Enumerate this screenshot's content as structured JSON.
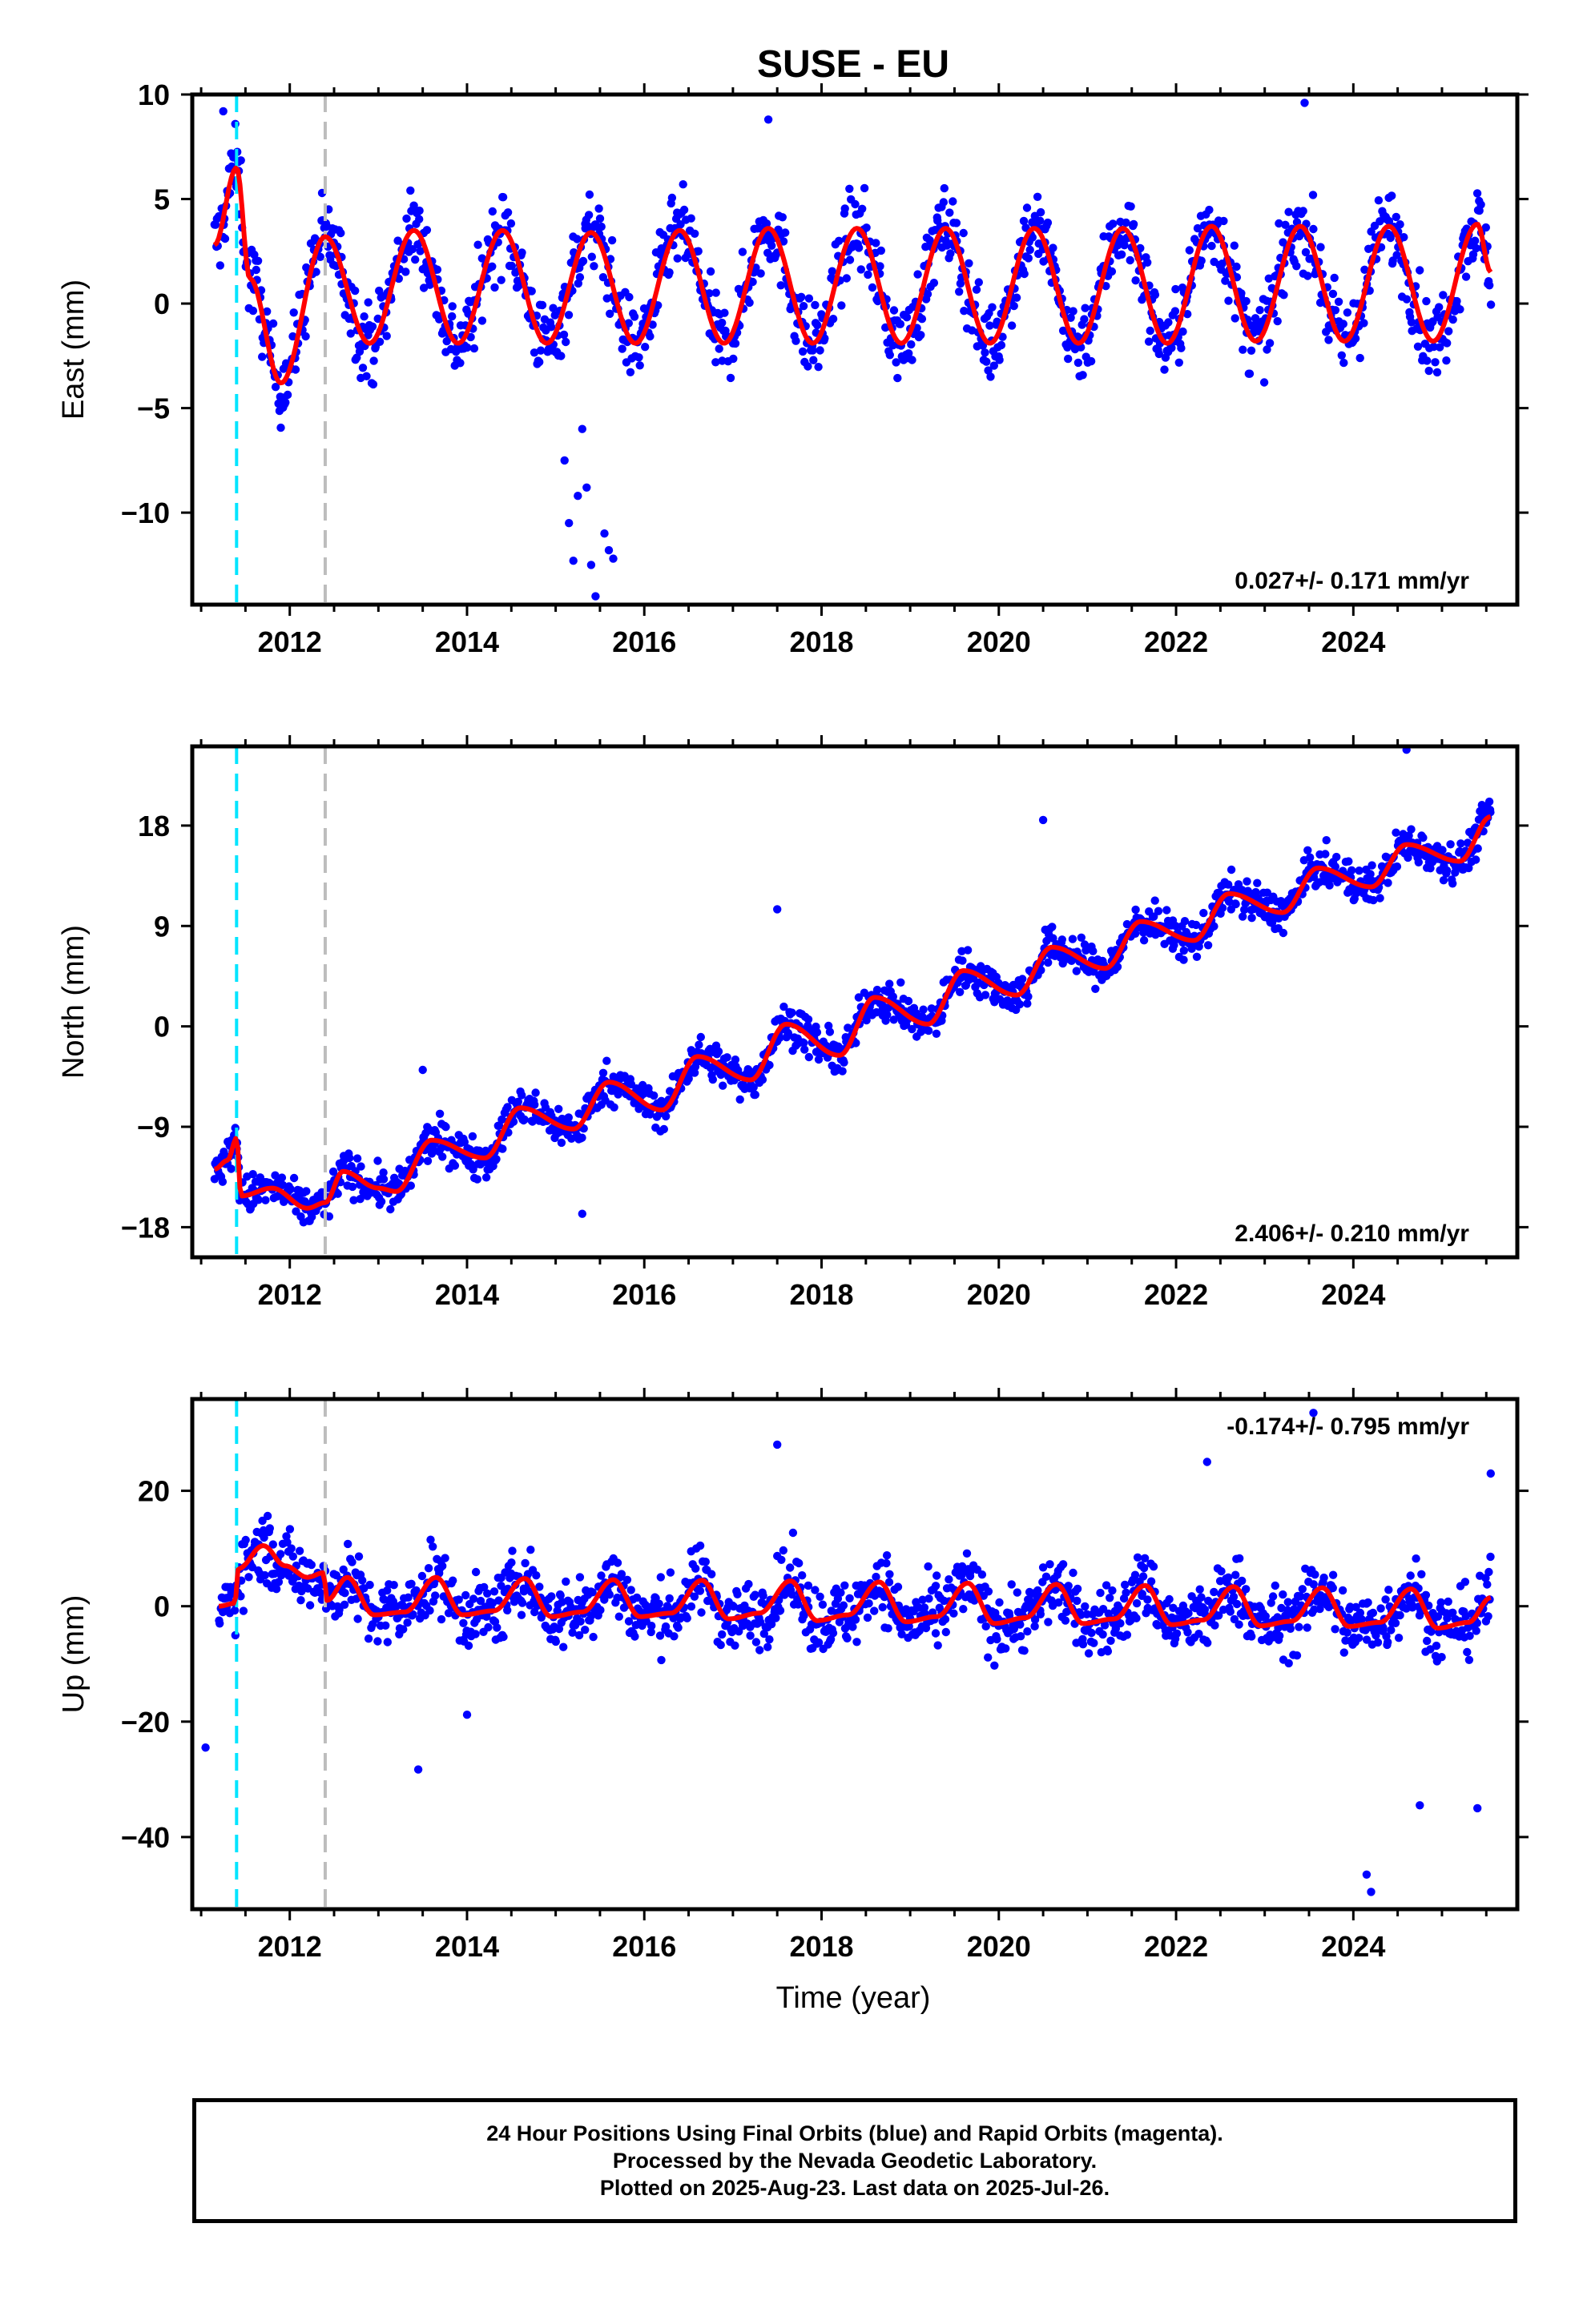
{
  "title": "SUSE - EU",
  "xlabel": "Time (year)",
  "caption": {
    "line1": "24 Hour Positions Using Final Orbits (blue) and Rapid Orbits (magenta).",
    "line2": "Processed by the Nevada Geodetic Laboratory.",
    "line3": "Plotted on 2025-Aug-23. Last data on 2025-Jul-26."
  },
  "colors": {
    "points": "#0000ff",
    "model": "#ff0000",
    "equipment_change": "#00e5ff",
    "offset_line": "#bdbdbd"
  },
  "vertical_markers": [
    {
      "x": 2011.4,
      "color": "#00e5ff",
      "style": "dashed"
    },
    {
      "x": 2012.4,
      "color": "#bdbdbd",
      "style": "dashed"
    }
  ],
  "chart_data": [
    {
      "type": "scatter",
      "ylabel": "East (mm)",
      "rate_label": "0.027+/- 0.171 mm/yr",
      "rate_position": "bottom-right",
      "xlim": [
        2010.9,
        2025.85
      ],
      "ylim": [
        -14.4,
        10.0
      ],
      "xticks": [
        2012,
        2014,
        2016,
        2018,
        2020,
        2022,
        2024
      ],
      "xtick_labels": [
        "2012",
        "2014",
        "2016",
        "2018",
        "2020",
        "2022",
        "2024"
      ],
      "yticks": [
        10,
        5,
        0,
        -5,
        -10
      ],
      "ytick_labels": [
        "10",
        "5",
        "0",
        "−5",
        "−10"
      ],
      "model": {
        "x": [
          2011.15,
          2011.4,
          2011.55,
          2011.9,
          2012.4,
          2012.9,
          2013.4,
          2013.9,
          2014.4,
          2014.9,
          2015.4,
          2015.9,
          2016.4,
          2016.9,
          2017.4,
          2017.9,
          2018.4,
          2018.9,
          2019.4,
          2019.9,
          2020.4,
          2020.9,
          2021.4,
          2021.9,
          2022.4,
          2022.9,
          2023.4,
          2023.9,
          2024.4,
          2024.9,
          2025.4,
          2025.55
        ],
        "y": [
          2.8,
          6.5,
          1.2,
          -3.8,
          3.2,
          -1.9,
          3.5,
          -1.9,
          3.5,
          -1.9,
          3.4,
          -1.9,
          3.5,
          -1.9,
          3.6,
          -1.9,
          3.6,
          -1.9,
          3.6,
          -1.9,
          3.6,
          -1.9,
          3.6,
          -1.9,
          3.7,
          -1.8,
          3.7,
          -1.8,
          3.7,
          -1.8,
          3.8,
          1.5
        ]
      },
      "outliers": {
        "x": [
          2015.1,
          2015.15,
          2015.2,
          2015.25,
          2015.3,
          2015.35,
          2015.4,
          2015.45,
          2015.55,
          2015.6,
          2015.65,
          2017.4,
          2023.45,
          2011.25
        ],
        "y": [
          -7.5,
          -10.5,
          -12.3,
          -9.2,
          -6.0,
          -8.8,
          -12.5,
          -14.0,
          -11.0,
          -11.8,
          -12.2,
          8.8,
          9.6,
          9.2
        ]
      }
    },
    {
      "type": "scatter",
      "ylabel": "North (mm)",
      "rate_label": "2.406+/- 0.210 mm/yr",
      "rate_position": "bottom-right",
      "xlim": [
        2010.9,
        2025.85
      ],
      "ylim": [
        -20.7,
        25.1
      ],
      "xticks": [
        2012,
        2014,
        2016,
        2018,
        2020,
        2022,
        2024
      ],
      "xtick_labels": [
        "2012",
        "2014",
        "2016",
        "2018",
        "2020",
        "2022",
        "2024"
      ],
      "yticks": [
        18,
        9,
        0,
        -9,
        -18
      ],
      "ytick_labels": [
        "18",
        "9",
        "0",
        "−9",
        "−18"
      ],
      "model": {
        "x": [
          2011.15,
          2011.3,
          2011.4,
          2011.45,
          2011.8,
          2012.2,
          2012.4,
          2012.6,
          2013.0,
          2013.2,
          2013.6,
          2014.2,
          2014.6,
          2015.2,
          2015.6,
          2016.2,
          2016.6,
          2017.2,
          2017.6,
          2018.2,
          2018.6,
          2019.2,
          2019.6,
          2020.2,
          2020.6,
          2021.2,
          2021.6,
          2022.2,
          2022.6,
          2023.2,
          2023.6,
          2024.2,
          2024.6,
          2025.2,
          2025.55
        ],
        "y": [
          -12.8,
          -12.0,
          -10.0,
          -15.2,
          -14.5,
          -16.3,
          -15.8,
          -13.0,
          -14.5,
          -14.8,
          -10.2,
          -11.8,
          -7.3,
          -9.2,
          -5.0,
          -7.5,
          -2.7,
          -4.8,
          0.2,
          -2.6,
          2.6,
          0.2,
          5.0,
          2.8,
          7.1,
          5.2,
          9.4,
          7.7,
          11.9,
          10.2,
          14.2,
          12.5,
          16.3,
          14.8,
          18.8
        ]
      },
      "outliers": {
        "x": [
          2024.6,
          2013.5,
          2015.3,
          2020.5,
          2017.5
        ],
        "y": [
          24.8,
          -3.9,
          -16.8,
          18.5,
          10.5
        ]
      }
    },
    {
      "type": "scatter",
      "ylabel": "Up (mm)",
      "rate_label": "-0.174+/- 0.795 mm/yr",
      "rate_position": "top-right",
      "xlim": [
        2010.9,
        2025.85
      ],
      "ylim": [
        -52.5,
        35.9
      ],
      "xticks": [
        2012,
        2014,
        2016,
        2018,
        2020,
        2022,
        2024
      ],
      "xtick_labels": [
        "2012",
        "2014",
        "2016",
        "2018",
        "2020",
        "2022",
        "2024"
      ],
      "yticks": [
        20,
        0,
        -20,
        -40
      ],
      "ytick_labels": [
        "20",
        "0",
        "−20",
        "−40"
      ],
      "model": {
        "x": [
          2011.2,
          2011.38,
          2011.42,
          2011.7,
          2011.95,
          2012.2,
          2012.38,
          2012.42,
          2012.65,
          2012.95,
          2013.3,
          2013.65,
          2013.95,
          2014.3,
          2014.65,
          2014.95,
          2015.3,
          2015.65,
          2015.95,
          2016.3,
          2016.65,
          2016.95,
          2017.3,
          2017.65,
          2017.95,
          2018.3,
          2018.65,
          2018.95,
          2019.3,
          2019.65,
          2019.95,
          2020.3,
          2020.65,
          2020.95,
          2021.3,
          2021.65,
          2021.95,
          2022.3,
          2022.65,
          2022.95,
          2023.3,
          2023.65,
          2023.95,
          2024.3,
          2024.65,
          2024.95,
          2025.3,
          2025.55
        ],
        "y": [
          0.0,
          0.5,
          6.5,
          10.5,
          7.0,
          5.0,
          5.8,
          1.0,
          5.0,
          -1.5,
          -1.0,
          5.0,
          -1.5,
          -0.8,
          4.8,
          -1.8,
          -1.0,
          4.6,
          -1.8,
          -1.2,
          4.5,
          -2.2,
          -1.2,
          4.4,
          -2.5,
          -1.5,
          4.2,
          -2.7,
          -1.8,
          4.0,
          -3.0,
          -2.0,
          3.8,
          -3.0,
          -2.2,
          3.6,
          -3.2,
          -2.4,
          3.4,
          -3.4,
          -2.6,
          3.2,
          -3.5,
          -2.8,
          3.0,
          -3.8,
          -2.8,
          1.5
        ]
      },
      "outliers": {
        "x": [
          2011.05,
          2013.45,
          2014.0,
          2024.15,
          2024.2,
          2023.55,
          2017.5,
          2025.4,
          2024.75,
          2022.35,
          2025.55
        ],
        "y": [
          -24.5,
          -28.3,
          -18.8,
          -46.5,
          -49.5,
          33.5,
          28.0,
          -35.0,
          -34.5,
          25.0,
          23.0
        ]
      }
    }
  ]
}
